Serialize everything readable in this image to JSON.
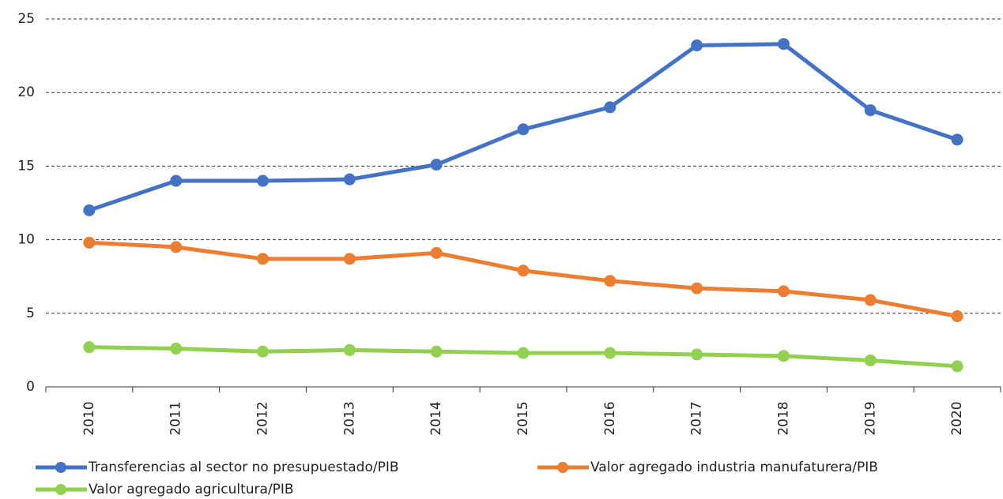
{
  "chart_data": {
    "type": "line",
    "categories": [
      "2010",
      "2011",
      "2012",
      "2013",
      "2014",
      "2015",
      "2016",
      "2017",
      "2018",
      "2019",
      "2020"
    ],
    "series": [
      {
        "name": "Transferencias al sector no presupuestado/PIB",
        "color": "#4472c4",
        "values": [
          12.0,
          14.0,
          14.0,
          14.1,
          15.1,
          17.5,
          19.0,
          23.2,
          23.3,
          18.8,
          16.8
        ]
      },
      {
        "name": "Valor agregado industria manufaturera/PIB",
        "color": "#ed7d31",
        "values": [
          9.8,
          9.5,
          8.7,
          8.7,
          9.1,
          7.9,
          7.2,
          6.7,
          6.5,
          5.9,
          4.8
        ]
      },
      {
        "name": "Valor agregado agricultura/PIB",
        "color": "#92d050",
        "values": [
          2.7,
          2.6,
          2.4,
          2.5,
          2.4,
          2.3,
          2.3,
          2.2,
          2.1,
          1.8,
          1.4
        ]
      }
    ],
    "ylim": [
      0,
      25
    ],
    "yticks": [
      0,
      5,
      10,
      15,
      20,
      25
    ],
    "grid": true
  }
}
